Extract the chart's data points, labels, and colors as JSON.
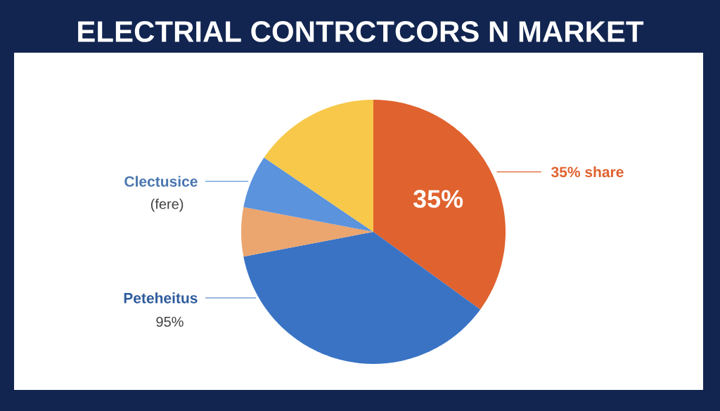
{
  "chart_data": {
    "type": "pie",
    "title": "ELECTRIAL CONTRCTCORS N MARKET",
    "categories": [
      "35% share",
      "Peteheitus",
      null,
      "Clectusice",
      null
    ],
    "values": [
      35,
      37,
      6,
      6.5,
      15.5
    ],
    "colors": [
      "#e0622f",
      "#3a73c4",
      "#eba56f",
      "#5b93dc",
      "#f8c84a"
    ],
    "value_labels": [
      "35%",
      null,
      null,
      "(fere)",
      null
    ],
    "annotations": [
      "95%"
    ]
  }
}
